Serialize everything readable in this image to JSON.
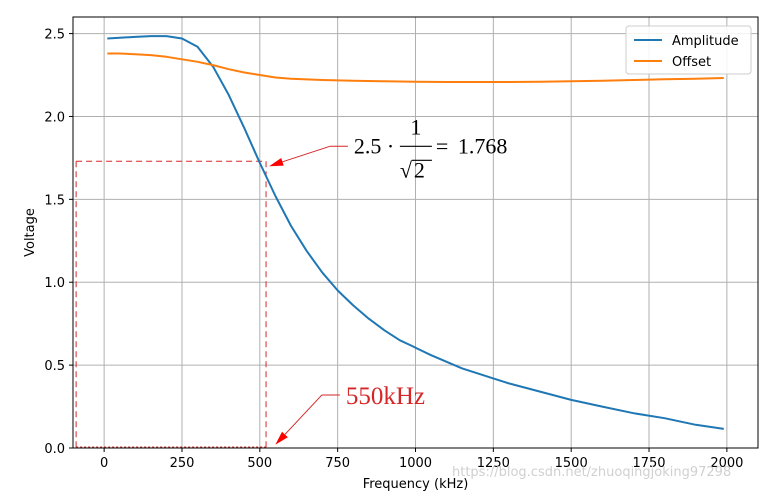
{
  "chart_data": {
    "type": "line",
    "title": "",
    "xlabel": "Frequency (kHz)",
    "ylabel": "Voltage",
    "xlim": [
      -100,
      2100
    ],
    "ylim": [
      0,
      2.6
    ],
    "xticks": [
      0,
      250,
      500,
      750,
      1000,
      1250,
      1500,
      1750,
      2000
    ],
    "yticks": [
      0.0,
      0.5,
      1.0,
      1.5,
      2.0,
      2.5
    ],
    "xtick_labels": [
      "0",
      "250",
      "500",
      "750",
      "1000",
      "1250",
      "1500",
      "1750",
      "2000"
    ],
    "ytick_labels": [
      "0.0",
      "0.5",
      "1.0",
      "1.5",
      "2.0",
      "2.5"
    ],
    "grid": true,
    "legend_position": "top-right",
    "series": [
      {
        "name": "Amplitude",
        "color": "#1f77b4",
        "x": [
          10,
          50,
          100,
          150,
          200,
          250,
          300,
          350,
          400,
          450,
          500,
          550,
          600,
          650,
          700,
          750,
          800,
          850,
          900,
          950,
          990,
          1005,
          1050,
          1100,
          1150,
          1200,
          1250,
          1300,
          1400,
          1500,
          1600,
          1700,
          1800,
          1900,
          1990
        ],
        "y": [
          2.47,
          2.475,
          2.48,
          2.485,
          2.485,
          2.47,
          2.42,
          2.3,
          2.13,
          1.93,
          1.72,
          1.52,
          1.34,
          1.19,
          1.06,
          0.95,
          0.86,
          0.78,
          0.71,
          0.65,
          0.615,
          0.6,
          0.56,
          0.52,
          0.48,
          0.45,
          0.42,
          0.39,
          0.34,
          0.29,
          0.25,
          0.21,
          0.18,
          0.14,
          0.115
        ]
      },
      {
        "name": "Offset",
        "color": "#ff7f0e",
        "x": [
          10,
          50,
          100,
          150,
          200,
          250,
          300,
          350,
          400,
          450,
          500,
          550,
          600,
          700,
          800,
          900,
          1000,
          1100,
          1200,
          1300,
          1400,
          1500,
          1600,
          1700,
          1800,
          1900,
          1990
        ],
        "y": [
          2.38,
          2.38,
          2.375,
          2.37,
          2.36,
          2.345,
          2.33,
          2.31,
          2.285,
          2.265,
          2.25,
          2.235,
          2.228,
          2.22,
          2.215,
          2.212,
          2.21,
          2.208,
          2.208,
          2.208,
          2.21,
          2.213,
          2.216,
          2.22,
          2.224,
          2.228,
          2.232
        ]
      }
    ],
    "reference_lines": {
      "color": "#d62728",
      "x_value": 520,
      "y_value": 1.73,
      "left_x": -90
    },
    "annotations": [
      {
        "id": "amp",
        "text_prefix": "2.5 ·",
        "numerator": "1",
        "radical": "√",
        "radicand": "2",
        "equals": "=",
        "result": "1.768",
        "point": [
          530,
          1.7
        ],
        "text_anchor": [
          770,
          1.82
        ],
        "color": "#000000"
      },
      {
        "id": "freq",
        "text": "550kHz",
        "point": [
          550,
          0.02
        ],
        "text_anchor": [
          770,
          0.32
        ],
        "color": "#d62728"
      }
    ],
    "watermark": "https://blog.csdn.net/zhuoqingjoking97298"
  }
}
